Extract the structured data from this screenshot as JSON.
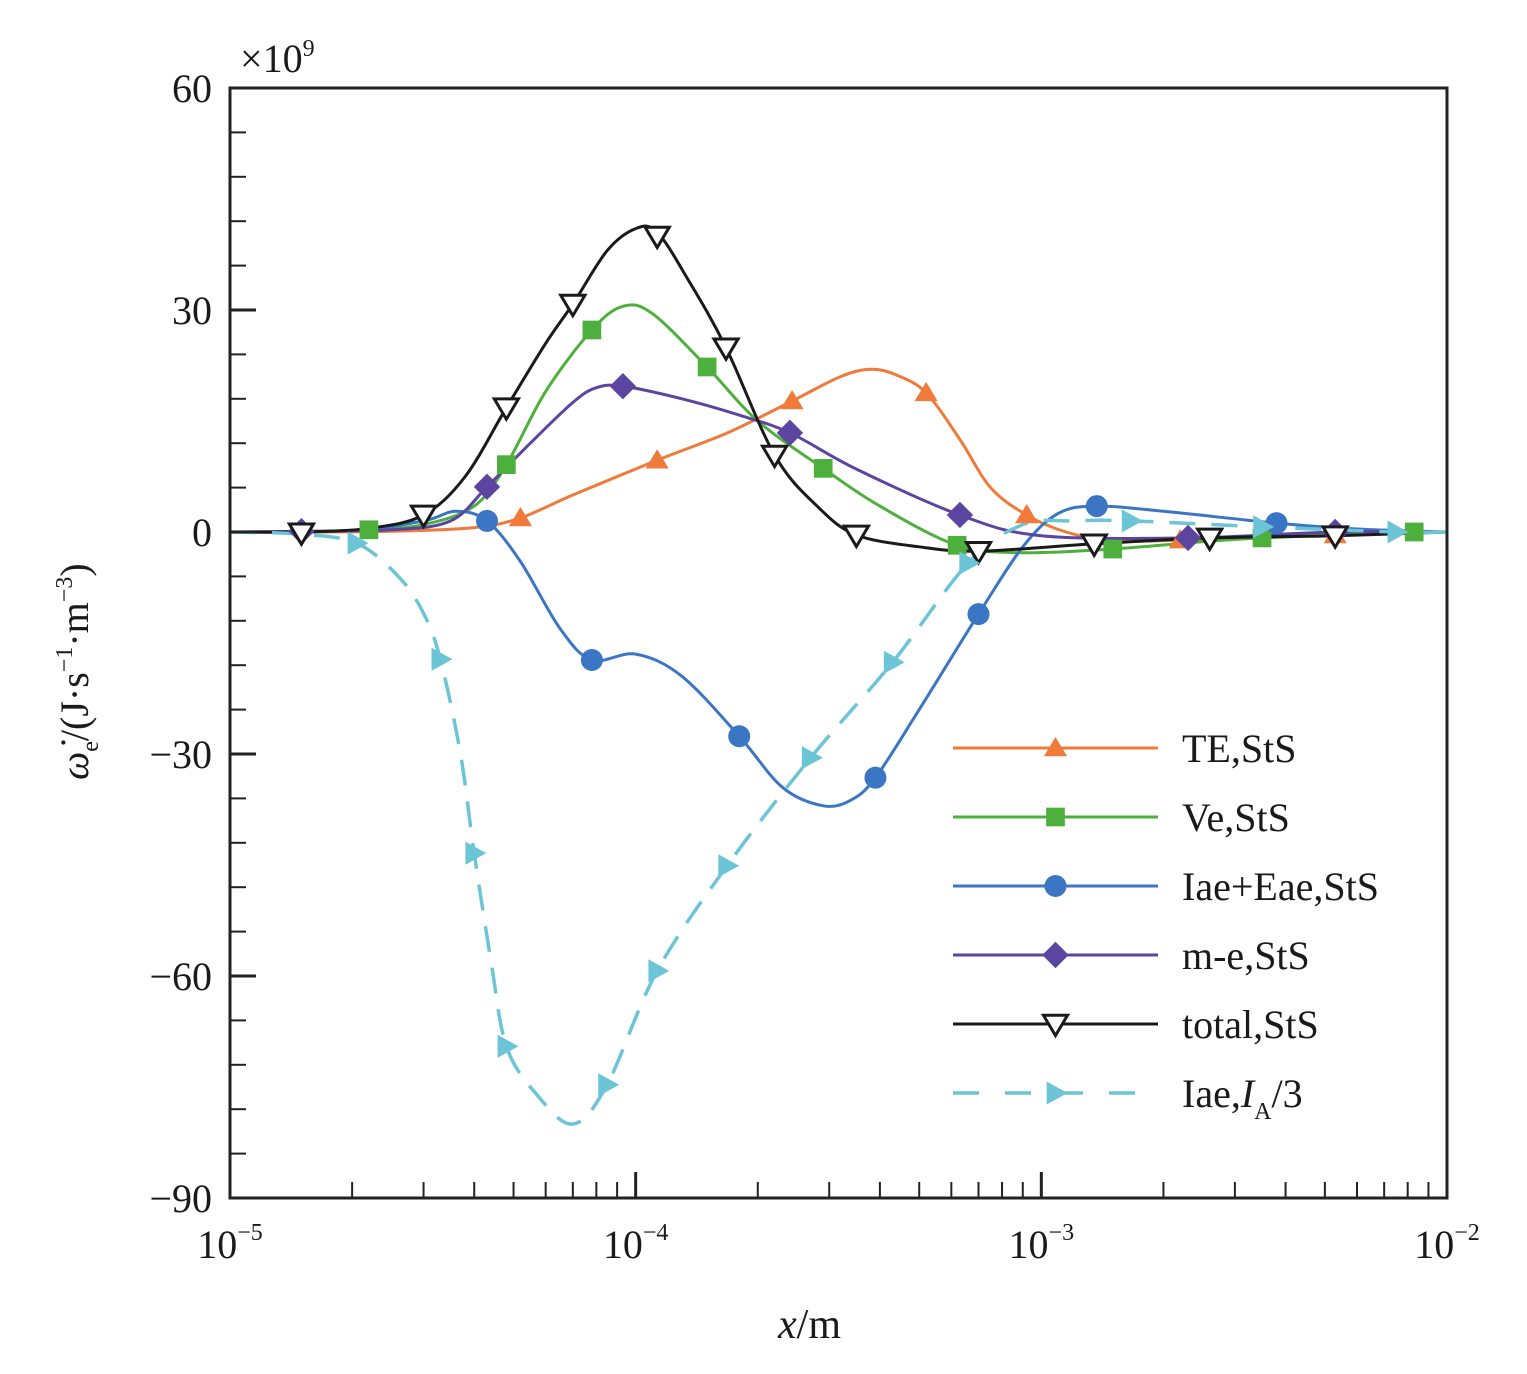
{
  "chart_data": {
    "type": "line",
    "title": "",
    "xlabel": "x/m",
    "xlabel_var": "x",
    "xlabel_unit": "/m",
    "ylabel": "ω̇e/(J·s⁻¹·m⁻³)",
    "ylabel_parts": {
      "symbol": "ω̇",
      "sub": "e",
      "unit_open": "/(J·s",
      "sup1": "−1",
      "mid": "·m",
      "sup2": "−3",
      "unit_close": ")"
    },
    "y_multiplier": {
      "times": "×",
      "base": "10",
      "exp": "9"
    },
    "xscale": "log",
    "xlim": [
      1e-05,
      0.01
    ],
    "ylim": [
      -90,
      60
    ],
    "x_ticks": [
      {
        "value": 1e-05,
        "base": "10",
        "exp": "−5"
      },
      {
        "value": 0.0001,
        "base": "10",
        "exp": "−4"
      },
      {
        "value": 0.001,
        "base": "10",
        "exp": "−3"
      },
      {
        "value": 0.01,
        "base": "10",
        "exp": "−2"
      }
    ],
    "y_ticks": [
      {
        "value": 60,
        "label": "60"
      },
      {
        "value": 30,
        "label": "30"
      },
      {
        "value": 0,
        "label": "0"
      },
      {
        "value": -30,
        "label": "−30"
      },
      {
        "value": -60,
        "label": "−60"
      },
      {
        "value": -90,
        "label": "−90"
      }
    ],
    "y_minor_step": 6,
    "grid": false,
    "legend_position": "lower-right",
    "series": [
      {
        "name": "TE,StS",
        "label_main": "TE,StS",
        "color": "#f07a3a",
        "marker": "triangle-up",
        "dash": false,
        "x": [
          1.5e-05,
          5.2e-05,
          0.000113,
          0.000243,
          0.00052,
          0.00092,
          0.0022,
          0.0053
        ],
        "y": [
          0,
          1.9,
          9.7,
          17.7,
          18.8,
          2.3,
          -1.1,
          -0.4
        ],
        "curve": [
          [
            1e-05,
            0
          ],
          [
            1.5e-05,
            0
          ],
          [
            2.5e-05,
            0.1
          ],
          [
            4e-05,
            0.6
          ],
          [
            5.2e-05,
            1.9
          ],
          [
            7e-05,
            5
          ],
          [
            0.000113,
            9.7
          ],
          [
            0.00017,
            13.5
          ],
          [
            0.000243,
            17.7
          ],
          [
            0.00032,
            21
          ],
          [
            0.00038,
            22
          ],
          [
            0.00044,
            21.2
          ],
          [
            0.00052,
            18.8
          ],
          [
            0.00063,
            12.5
          ],
          [
            0.00075,
            6
          ],
          [
            0.00092,
            2.3
          ],
          [
            0.00115,
            0
          ],
          [
            0.0015,
            -1.2
          ],
          [
            0.0022,
            -1.1
          ],
          [
            0.0035,
            -0.7
          ],
          [
            0.0053,
            -0.4
          ],
          [
            0.01,
            0
          ]
        ],
        "marker_mask": [
          0,
          1,
          1,
          1,
          1,
          1,
          1,
          1
        ]
      },
      {
        "name": "Ve,StS",
        "label_main": "Ve,StS",
        "color": "#4eb03c",
        "marker": "square",
        "dash": false,
        "x": [
          2.2e-05,
          4.8e-05,
          7.8e-05,
          0.00015,
          0.00029,
          0.00062,
          0.0015,
          0.0035,
          0.0083
        ],
        "y": [
          0.3,
          9.1,
          27.3,
          22.3,
          8.6,
          -1.8,
          -2.3,
          -0.8,
          0
        ],
        "curve": [
          [
            1e-05,
            0
          ],
          [
            1.5e-05,
            0
          ],
          [
            2.2e-05,
            0.3
          ],
          [
            3e-05,
            1
          ],
          [
            4e-05,
            3.5
          ],
          [
            4.8e-05,
            9.1
          ],
          [
            6e-05,
            19
          ],
          [
            7.8e-05,
            27.3
          ],
          [
            9.3e-05,
            30.5
          ],
          [
            0.00011,
            29.5
          ],
          [
            0.00015,
            22.3
          ],
          [
            0.0002,
            15
          ],
          [
            0.00029,
            8.6
          ],
          [
            0.0004,
            3.5
          ],
          [
            0.00062,
            -1.8
          ],
          [
            0.0009,
            -2.8
          ],
          [
            0.0015,
            -2.3
          ],
          [
            0.0025,
            -1.3
          ],
          [
            0.0035,
            -0.8
          ],
          [
            0.006,
            -0.3
          ],
          [
            0.01,
            0
          ]
        ],
        "marker_mask": [
          1,
          1,
          1,
          1,
          1,
          1,
          1,
          1,
          1
        ]
      },
      {
        "name": "Iae+Eae,StS",
        "label_main": "Iae+Eae,StS",
        "color": "#3a76c4",
        "marker": "circle",
        "dash": false,
        "x": [
          4.3e-05,
          7.8e-05,
          0.00018,
          0.00039,
          0.0007,
          0.00137,
          0.0038
        ],
        "y": [
          1.5,
          -17.3,
          -27.6,
          -33.2,
          -11.1,
          3.5,
          1.2
        ],
        "curve": [
          [
            1e-05,
            0
          ],
          [
            2e-05,
            0.2
          ],
          [
            3e-05,
            1.5
          ],
          [
            3.6e-05,
            2.8
          ],
          [
            4.3e-05,
            1.5
          ],
          [
            5.2e-05,
            -4
          ],
          [
            6.5e-05,
            -13
          ],
          [
            7.8e-05,
            -17.3
          ],
          [
            0.0001,
            -16.5
          ],
          [
            0.00013,
            -19.5
          ],
          [
            0.00018,
            -27.6
          ],
          [
            0.00023,
            -34.5
          ],
          [
            0.00029,
            -37
          ],
          [
            0.00034,
            -36.2
          ],
          [
            0.00039,
            -33.2
          ],
          [
            0.0005,
            -24
          ],
          [
            0.0007,
            -11.1
          ],
          [
            0.0009,
            -2
          ],
          [
            0.0011,
            2.5
          ],
          [
            0.00137,
            3.5
          ],
          [
            0.002,
            2.8
          ],
          [
            0.0038,
            1.2
          ],
          [
            0.006,
            0.4
          ],
          [
            0.01,
            0
          ]
        ],
        "marker_mask": [
          1,
          1,
          1,
          1,
          1,
          1,
          1
        ]
      },
      {
        "name": "m-e,StS",
        "label_main": "m-e,StS",
        "color": "#5b45a0",
        "marker": "diamond",
        "dash": false,
        "x": [
          1.5e-05,
          4.3e-05,
          9.3e-05,
          0.00024,
          0.00063,
          0.0023,
          0.0053
        ],
        "y": [
          0.1,
          6.1,
          19.7,
          13.4,
          2.3,
          -0.8,
          0
        ],
        "curve": [
          [
            1e-05,
            0
          ],
          [
            1.5e-05,
            0.1
          ],
          [
            2.5e-05,
            0.3
          ],
          [
            3.5e-05,
            1.5
          ],
          [
            4.3e-05,
            6.1
          ],
          [
            5.5e-05,
            12
          ],
          [
            7e-05,
            17.5
          ],
          [
            8e-05,
            19.5
          ],
          [
            9.3e-05,
            19.7
          ],
          [
            0.00013,
            18
          ],
          [
            0.00018,
            15.8
          ],
          [
            0.00024,
            13.4
          ],
          [
            0.00035,
            8.5
          ],
          [
            0.00063,
            2.3
          ],
          [
            0.001,
            -0.5
          ],
          [
            0.0023,
            -0.8
          ],
          [
            0.0053,
            0
          ],
          [
            0.01,
            0
          ]
        ],
        "marker_mask": [
          1,
          1,
          1,
          1,
          1,
          1,
          1
        ]
      },
      {
        "name": "total,StS",
        "label_main": "total,StS",
        "color": "#1a1a1a",
        "marker": "triangle-down-open",
        "dash": false,
        "x": [
          1.5e-05,
          3e-05,
          4.8e-05,
          7e-05,
          0.000113,
          0.000167,
          0.00022,
          0.00035,
          0.0007,
          0.00135,
          0.0026,
          0.0053
        ],
        "y": [
          -0.1,
          2.3,
          16.8,
          30.8,
          40,
          24.9,
          10.4,
          -0.4,
          -2.6,
          -1.6,
          -0.8,
          -0.5
        ],
        "curve": [
          [
            1e-05,
            0
          ],
          [
            1.5e-05,
            0
          ],
          [
            2.2e-05,
            0.5
          ],
          [
            3e-05,
            2.3
          ],
          [
            3.8e-05,
            7.5
          ],
          [
            4.8e-05,
            16.8
          ],
          [
            6e-05,
            25.5
          ],
          [
            7e-05,
            30.8
          ],
          [
            8.5e-05,
            38
          ],
          [
            0.0001,
            41
          ],
          [
            0.000113,
            40.5
          ],
          [
            0.000135,
            34
          ],
          [
            0.000167,
            24.9
          ],
          [
            0.00022,
            10.4
          ],
          [
            0.00028,
            3.5
          ],
          [
            0.00035,
            -0.4
          ],
          [
            0.0005,
            -2
          ],
          [
            0.0007,
            -2.6
          ],
          [
            0.00135,
            -1.6
          ],
          [
            0.0026,
            -0.8
          ],
          [
            0.0053,
            -0.5
          ],
          [
            0.01,
            0
          ]
        ],
        "marker_mask": [
          1,
          1,
          1,
          1,
          1,
          1,
          1,
          1,
          1,
          1,
          1,
          1
        ]
      },
      {
        "name": "Iae,IA/3",
        "label_main": "Iae,",
        "label_ital": "I",
        "label_sub": "A",
        "label_tail": "/3",
        "color": "#6cc5d6",
        "marker": "triangle-right",
        "dash": true,
        "x": [
          2.05e-05,
          3.3e-05,
          4e-05,
          4.8e-05,
          8.5e-05,
          0.000113,
          0.000168,
          0.00027,
          0.00043,
          0.00066,
          0.00166,
          0.0035,
          0.0075
        ],
        "y": [
          -1.5,
          -17.2,
          -43.4,
          -69.5,
          -74.7,
          -59.3,
          -45.1,
          -30.5,
          -17.6,
          -4.2,
          1.5,
          0.7,
          0
        ],
        "curve": [
          [
            1e-05,
            0
          ],
          [
            1.5e-05,
            -0.3
          ],
          [
            2.05e-05,
            -1.5
          ],
          [
            2.6e-05,
            -6
          ],
          [
            3e-05,
            -11
          ],
          [
            3.3e-05,
            -17.2
          ],
          [
            3.7e-05,
            -30
          ],
          [
            4e-05,
            -43.4
          ],
          [
            4.4e-05,
            -58
          ],
          [
            4.8e-05,
            -69.5
          ],
          [
            5.7e-05,
            -76
          ],
          [
            7e-05,
            -80
          ],
          [
            8.5e-05,
            -74.7
          ],
          [
            0.000113,
            -59.3
          ],
          [
            0.000168,
            -45.1
          ],
          [
            0.00027,
            -30.5
          ],
          [
            0.00043,
            -17.6
          ],
          [
            0.00066,
            -4.2
          ],
          [
            0.0009,
            1
          ],
          [
            0.0012,
            1.5
          ],
          [
            0.00166,
            1.5
          ],
          [
            0.0035,
            0.7
          ],
          [
            0.0075,
            0
          ],
          [
            0.01,
            0
          ]
        ],
        "marker_mask": [
          1,
          1,
          1,
          1,
          1,
          1,
          1,
          1,
          1,
          1,
          1,
          1,
          1
        ]
      }
    ]
  }
}
